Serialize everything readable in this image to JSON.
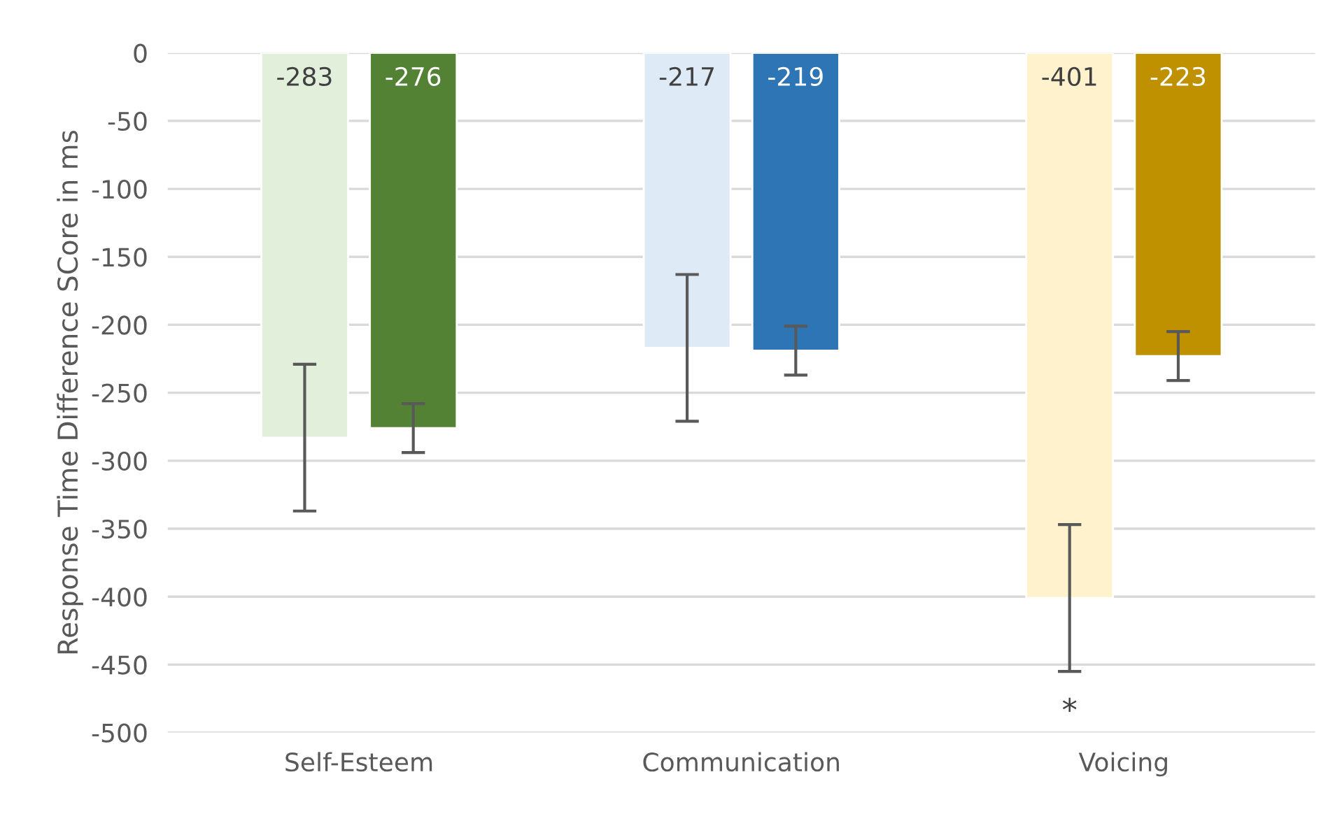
{
  "chart_data": {
    "type": "bar",
    "ylabel": "Response Time Difference SCore in ms",
    "categories": [
      "Self-Esteem",
      "Communication",
      "Voicing"
    ],
    "series": [
      {
        "colors": [
          "#e2efda",
          "#deebf7",
          "#fff2cc"
        ],
        "values": [
          -283,
          -217,
          -401
        ],
        "errors": [
          54,
          54,
          54
        ]
      },
      {
        "colors": [
          "#548235",
          "#2e75b6",
          "#bf9000"
        ],
        "values": [
          -276,
          -219,
          -223
        ],
        "errors": [
          18,
          18,
          18
        ]
      }
    ],
    "ylim": [
      -500,
      0
    ],
    "yticks": [
      0,
      -50,
      -100,
      -150,
      -200,
      -250,
      -300,
      -350,
      -400,
      -450,
      -500
    ],
    "grid": "y",
    "data_labels": true,
    "annotations": [
      "*"
    ]
  }
}
